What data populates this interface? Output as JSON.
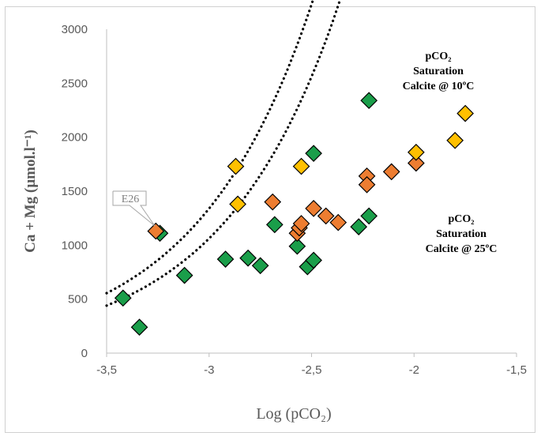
{
  "chart_data": {
    "type": "scatter",
    "xlabel": "Log (pCO₂)",
    "ylabel": "Ca + Mg (µmol.l⁻¹)",
    "xlim": [
      -3.5,
      -1.5
    ],
    "ylim": [
      0,
      3000
    ],
    "x_ticks": [
      "-3,5",
      "-3",
      "-2,5",
      "-2",
      "-1,5"
    ],
    "y_ticks": [
      "0",
      "500",
      "1000",
      "1500",
      "2000",
      "2500",
      "3000"
    ],
    "grid": false,
    "colors": {
      "green": "#1a9e4a",
      "orange": "#ed7d31",
      "yellow": "#ffc000"
    },
    "series": [
      {
        "color": "green",
        "points": [
          [
            -3.42,
            510
          ],
          [
            -3.34,
            240
          ],
          [
            -3.24,
            1110
          ],
          [
            -3.12,
            720
          ],
          [
            -2.92,
            870
          ],
          [
            -2.81,
            880
          ],
          [
            -2.75,
            810
          ],
          [
            -2.68,
            1190
          ],
          [
            -2.57,
            990
          ],
          [
            -2.52,
            800
          ],
          [
            -2.49,
            860
          ],
          [
            -2.49,
            1850
          ],
          [
            -2.27,
            1170
          ],
          [
            -2.22,
            1270
          ],
          [
            -2.22,
            2340
          ]
        ]
      },
      {
        "color": "orange",
        "points": [
          [
            -3.26,
            1130
          ],
          [
            -2.69,
            1400
          ],
          [
            -2.57,
            1110
          ],
          [
            -2.56,
            1160
          ],
          [
            -2.55,
            1200
          ],
          [
            -2.49,
            1340
          ],
          [
            -2.43,
            1270
          ],
          [
            -2.37,
            1210
          ],
          [
            -2.23,
            1640
          ],
          [
            -2.23,
            1560
          ],
          [
            -2.11,
            1680
          ],
          [
            -1.99,
            1760
          ]
        ]
      },
      {
        "color": "yellow",
        "points": [
          [
            -2.87,
            1730
          ],
          [
            -2.86,
            1380
          ],
          [
            -2.55,
            1730
          ],
          [
            -1.99,
            1860
          ],
          [
            -1.8,
            1970
          ],
          [
            -1.75,
            2220
          ]
        ]
      }
    ],
    "curves": [
      {
        "name": "Calcite @ 10ºC",
        "color": "#000000",
        "style": "dotted",
        "x_start": -3.5,
        "y_start": 555,
        "y_per_unit_x_exp": 0.765
      },
      {
        "name": "Calcite @ 25ºC",
        "color": "#000000",
        "style": "dotted",
        "x_start": -3.5,
        "y_start": 440,
        "y_per_unit_x_exp": 0.765
      }
    ],
    "annotations": {
      "curve_10": {
        "line1": "pCO₂",
        "line2": "Saturation",
        "line3": "Calcite @ 10ºC"
      },
      "curve_25": {
        "line1": "pCO₂",
        "line2": "Saturation",
        "line3": "Calcite @ 25ºC"
      },
      "callout": {
        "label": "E26",
        "x": -3.26,
        "y": 1130
      }
    }
  }
}
